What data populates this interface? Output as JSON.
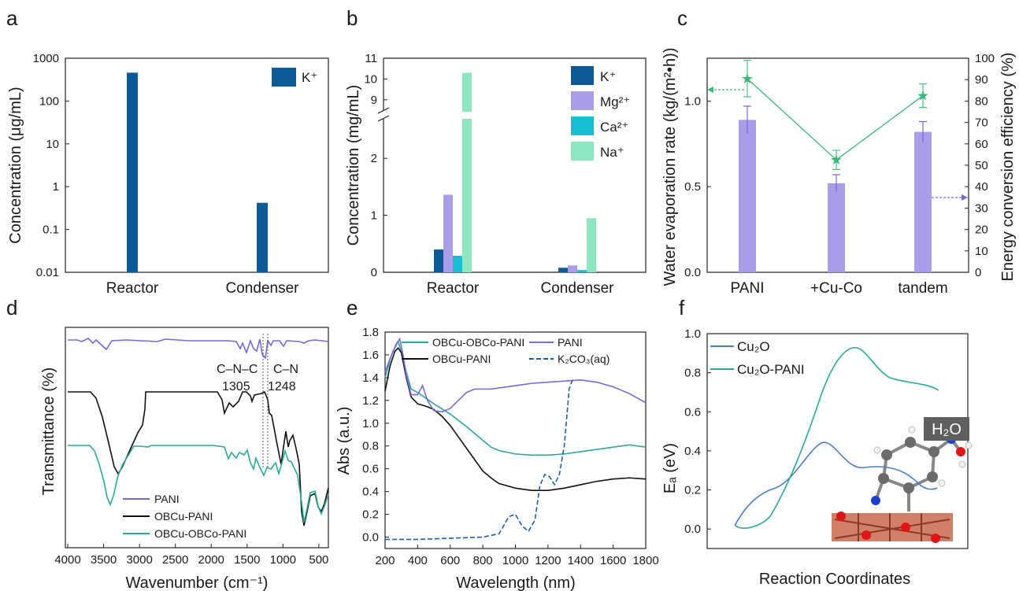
{
  "figure": {
    "panel_letters": [
      "a",
      "b",
      "c",
      "d",
      "e",
      "f"
    ]
  },
  "chart_data": [
    {
      "panel": "a",
      "type": "bar",
      "categories": [
        "Reactor",
        "Condenser"
      ],
      "ylabel": "Concentration (μg/mL)",
      "yscale": "log",
      "ylim": [
        0.01,
        1000
      ],
      "yticks": [
        "0.01",
        "0.1",
        "1",
        "10",
        "100",
        "1000"
      ],
      "series": [
        {
          "name": "K⁺",
          "color": "#0d5a97",
          "values": [
            460,
            0.42
          ]
        }
      ],
      "legend_position": "top-right"
    },
    {
      "panel": "b",
      "type": "bar",
      "categories": [
        "Reactor",
        "Condenser"
      ],
      "ylabel": "Concentration (mg/mL)",
      "axis_break": {
        "lower": [
          0,
          2.5
        ],
        "upper": [
          8.5,
          11
        ]
      },
      "yticks_lower": [
        "0",
        "1",
        "2"
      ],
      "yticks_upper": [
        "9",
        "10",
        "11"
      ],
      "series": [
        {
          "name": "K⁺",
          "color": "#0d5a97",
          "values": [
            0.4,
            0.08
          ]
        },
        {
          "name": "Mg²⁺",
          "color": "#a89de6",
          "values": [
            1.36,
            0.12
          ]
        },
        {
          "name": "Ca²⁺",
          "color": "#17c0d0",
          "values": [
            0.29,
            0.04
          ]
        },
        {
          "name": "Na⁺",
          "color": "#8ce6c0",
          "values": [
            10.3,
            0.95
          ]
        }
      ],
      "legend_position": "top-right"
    },
    {
      "panel": "c",
      "type": "bar",
      "categories": [
        "PANI",
        "+Cu-Co",
        "tandem"
      ],
      "ylabel": "Water evaporation rate (kg/(m²•h))",
      "ylim": [
        0,
        1.25
      ],
      "yticks": [
        "0.0",
        "0.5",
        "1.0"
      ],
      "y2label": "Energy conversion efficiency (%)",
      "y2lim": [
        0,
        100
      ],
      "y2ticks": [
        "0",
        "10",
        "20",
        "30",
        "40",
        "50",
        "60",
        "70",
        "80",
        "90",
        "100"
      ],
      "series": [
        {
          "name": "Water evaporation rate",
          "color": "#a89de6",
          "axis": "left",
          "values": [
            0.89,
            0.52,
            0.82
          ],
          "errors": [
            0.08,
            0.05,
            0.06
          ]
        },
        {
          "name": "Energy conversion efficiency",
          "color": "#3cb878",
          "axis": "right",
          "type": "line",
          "values": [
            90.5,
            52.5,
            82.5
          ],
          "errors": [
            8.5,
            4.5,
            5.5
          ]
        }
      ]
    },
    {
      "panel": "d",
      "type": "line",
      "xlabel": "Wavenumber (cm⁻¹)",
      "ylabel": "Transmittance (%)",
      "xlim": [
        4000,
        400
      ],
      "xticks": [
        "4000",
        "3500",
        "3000",
        "2500",
        "2000",
        "1500",
        "1000",
        "500"
      ],
      "annotations": [
        {
          "text": "C–N–C",
          "sub": "1305",
          "x": 1305
        },
        {
          "text": "C–N",
          "sub": "1248",
          "x": 1248
        }
      ],
      "series": [
        {
          "name": "PANI",
          "color": "#7b66d8"
        },
        {
          "name": "OBCu-PANI",
          "color": "#111111"
        },
        {
          "name": "OBCu-OBCo-PANI",
          "color": "#2aa89a"
        }
      ],
      "legend_position": "bottom-left"
    },
    {
      "panel": "e",
      "type": "line",
      "xlabel": "Wavelength (nm)",
      "ylabel": "Abs (a.u.)",
      "xlim": [
        200,
        1800
      ],
      "ylim": [
        -0.1,
        1.8
      ],
      "xticks": [
        "200",
        "400",
        "600",
        "800",
        "1000",
        "1200",
        "1400",
        "1600",
        "1800"
      ],
      "yticks": [
        "0.0",
        "0.2",
        "0.4",
        "0.6",
        "0.8",
        "1.0",
        "1.2",
        "1.4",
        "1.6",
        "1.8"
      ],
      "series": [
        {
          "name": "OBCu-OBCo-PANI",
          "color": "#2aa89a",
          "x": [
            200,
            240,
            280,
            300,
            330,
            360,
            400,
            450,
            500,
            600,
            700,
            800,
            850,
            900,
            1000,
            1100,
            1200,
            1300,
            1400,
            1500,
            1600,
            1700,
            1800
          ],
          "y": [
            1.4,
            1.6,
            1.72,
            1.62,
            1.45,
            1.3,
            1.27,
            1.22,
            1.17,
            1.08,
            0.97,
            0.85,
            0.79,
            0.76,
            0.73,
            0.72,
            0.72,
            0.73,
            0.75,
            0.77,
            0.79,
            0.81,
            0.79
          ]
        },
        {
          "name": "OBCu-PANI",
          "color": "#111111",
          "x": [
            200,
            230,
            260,
            280,
            300,
            330,
            360,
            400,
            450,
            500,
            550,
            600,
            650,
            700,
            750,
            800,
            850,
            900,
            1000,
            1100,
            1200,
            1300,
            1400,
            1500,
            1600,
            1700,
            1800
          ],
          "y": [
            1.28,
            1.5,
            1.63,
            1.66,
            1.62,
            1.4,
            1.23,
            1.17,
            1.15,
            1.12,
            1.06,
            0.98,
            0.88,
            0.78,
            0.68,
            0.58,
            0.52,
            0.47,
            0.43,
            0.41,
            0.41,
            0.43,
            0.46,
            0.49,
            0.51,
            0.52,
            0.51
          ]
        },
        {
          "name": "PANI",
          "color": "#7b66d8",
          "x": [
            200,
            240,
            270,
            290,
            310,
            330,
            360,
            400,
            430,
            460,
            500,
            550,
            600,
            650,
            700,
            750,
            800,
            850,
            900,
            1000,
            1100,
            1200,
            1300,
            1400,
            1500,
            1600,
            1700,
            1800
          ],
          "y": [
            1.45,
            1.6,
            1.7,
            1.74,
            1.6,
            1.42,
            1.25,
            1.25,
            1.33,
            1.2,
            1.11,
            1.1,
            1.13,
            1.2,
            1.27,
            1.3,
            1.3,
            1.3,
            1.31,
            1.33,
            1.35,
            1.36,
            1.37,
            1.38,
            1.36,
            1.32,
            1.26,
            1.18
          ]
        },
        {
          "name": "K₂CO₃(aq)",
          "color": "#1f5f9e",
          "dashed": true,
          "x": [
            200,
            400,
            600,
            800,
            900,
            960,
            1000,
            1040,
            1080,
            1120,
            1150,
            1180,
            1210,
            1240,
            1270,
            1300,
            1330,
            1350
          ],
          "y": [
            -0.02,
            -0.02,
            -0.01,
            0.0,
            0.03,
            0.18,
            0.2,
            0.1,
            0.05,
            0.15,
            0.45,
            0.55,
            0.53,
            0.46,
            0.55,
            0.8,
            1.3,
            1.38
          ]
        }
      ],
      "legend_position": "top"
    },
    {
      "panel": "f",
      "type": "line",
      "xlabel": "Reaction Coordinates",
      "ylabel": "Eₐ (eV)",
      "ylim": [
        -0.1,
        1.0
      ],
      "yticks": [
        "0.0",
        "0.2",
        "0.4",
        "0.6",
        "0.8",
        "1.0"
      ],
      "series": [
        {
          "name": "Cu₂O",
          "color": "#4a7fc4"
        },
        {
          "name": "Cu₂O-PANI",
          "color": "#2aa89a"
        }
      ],
      "inset_label": "H₂O",
      "legend_position": "top-left"
    }
  ]
}
